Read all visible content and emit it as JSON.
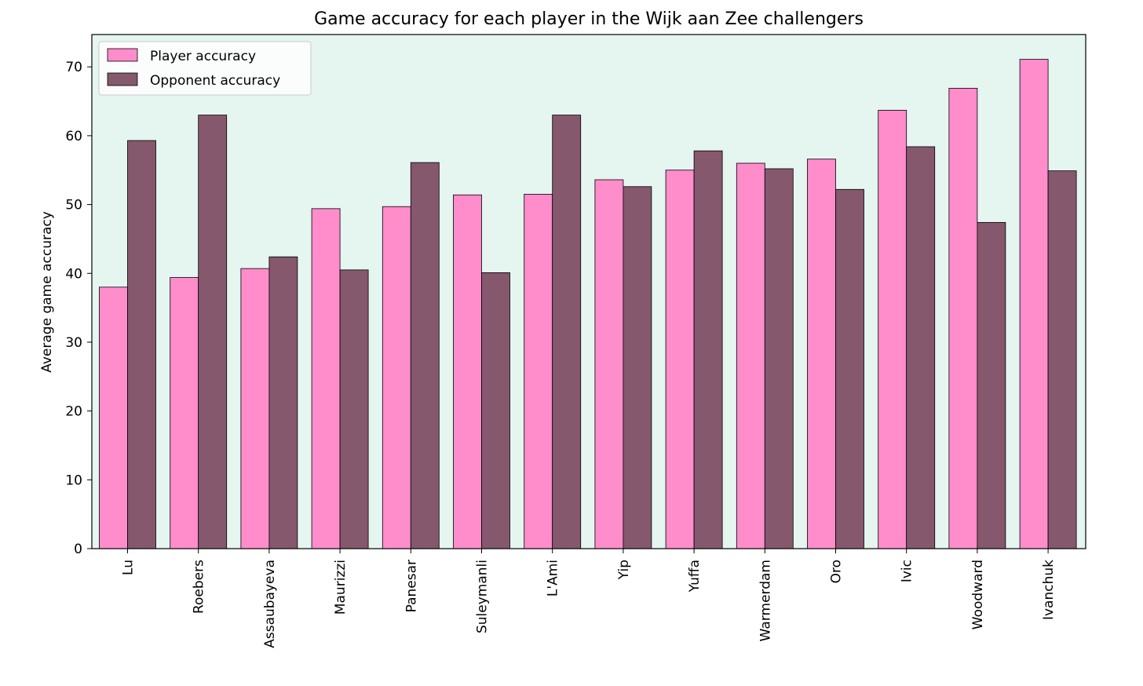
{
  "chart_data": {
    "type": "bar",
    "title": "Game accuracy for each player in the Wijk aan Zee challengers",
    "xlabel": "",
    "ylabel": "Average game accuracy",
    "ylim": [
      0,
      74.7
    ],
    "yticks": [
      0,
      10,
      20,
      30,
      40,
      50,
      60,
      70
    ],
    "categories": [
      "Lu",
      "Roebers",
      "Assaubayeva",
      "Maurizzi",
      "Panesar",
      "Suleymanli",
      "L'Ami",
      "Yip",
      "Yuffa",
      "Warmerdam",
      "Oro",
      "Ivic",
      "Woodward",
      "Ivanchuk"
    ],
    "series": [
      {
        "name": "Player accuracy",
        "color": "#ff8ccb",
        "values": [
          38.0,
          39.4,
          40.7,
          49.4,
          49.7,
          51.4,
          51.5,
          53.6,
          55.0,
          56.0,
          56.6,
          63.7,
          66.9,
          71.1
        ]
      },
      {
        "name": "Opponent accuracy",
        "color": "#85586d",
        "values": [
          59.3,
          63.0,
          42.4,
          40.5,
          56.1,
          40.1,
          63.0,
          52.6,
          57.8,
          55.2,
          52.2,
          58.4,
          47.4,
          54.9
        ]
      }
    ],
    "legend": {
      "position": "top-left"
    },
    "plot_background": "#e5f5f0",
    "grid": false
  }
}
